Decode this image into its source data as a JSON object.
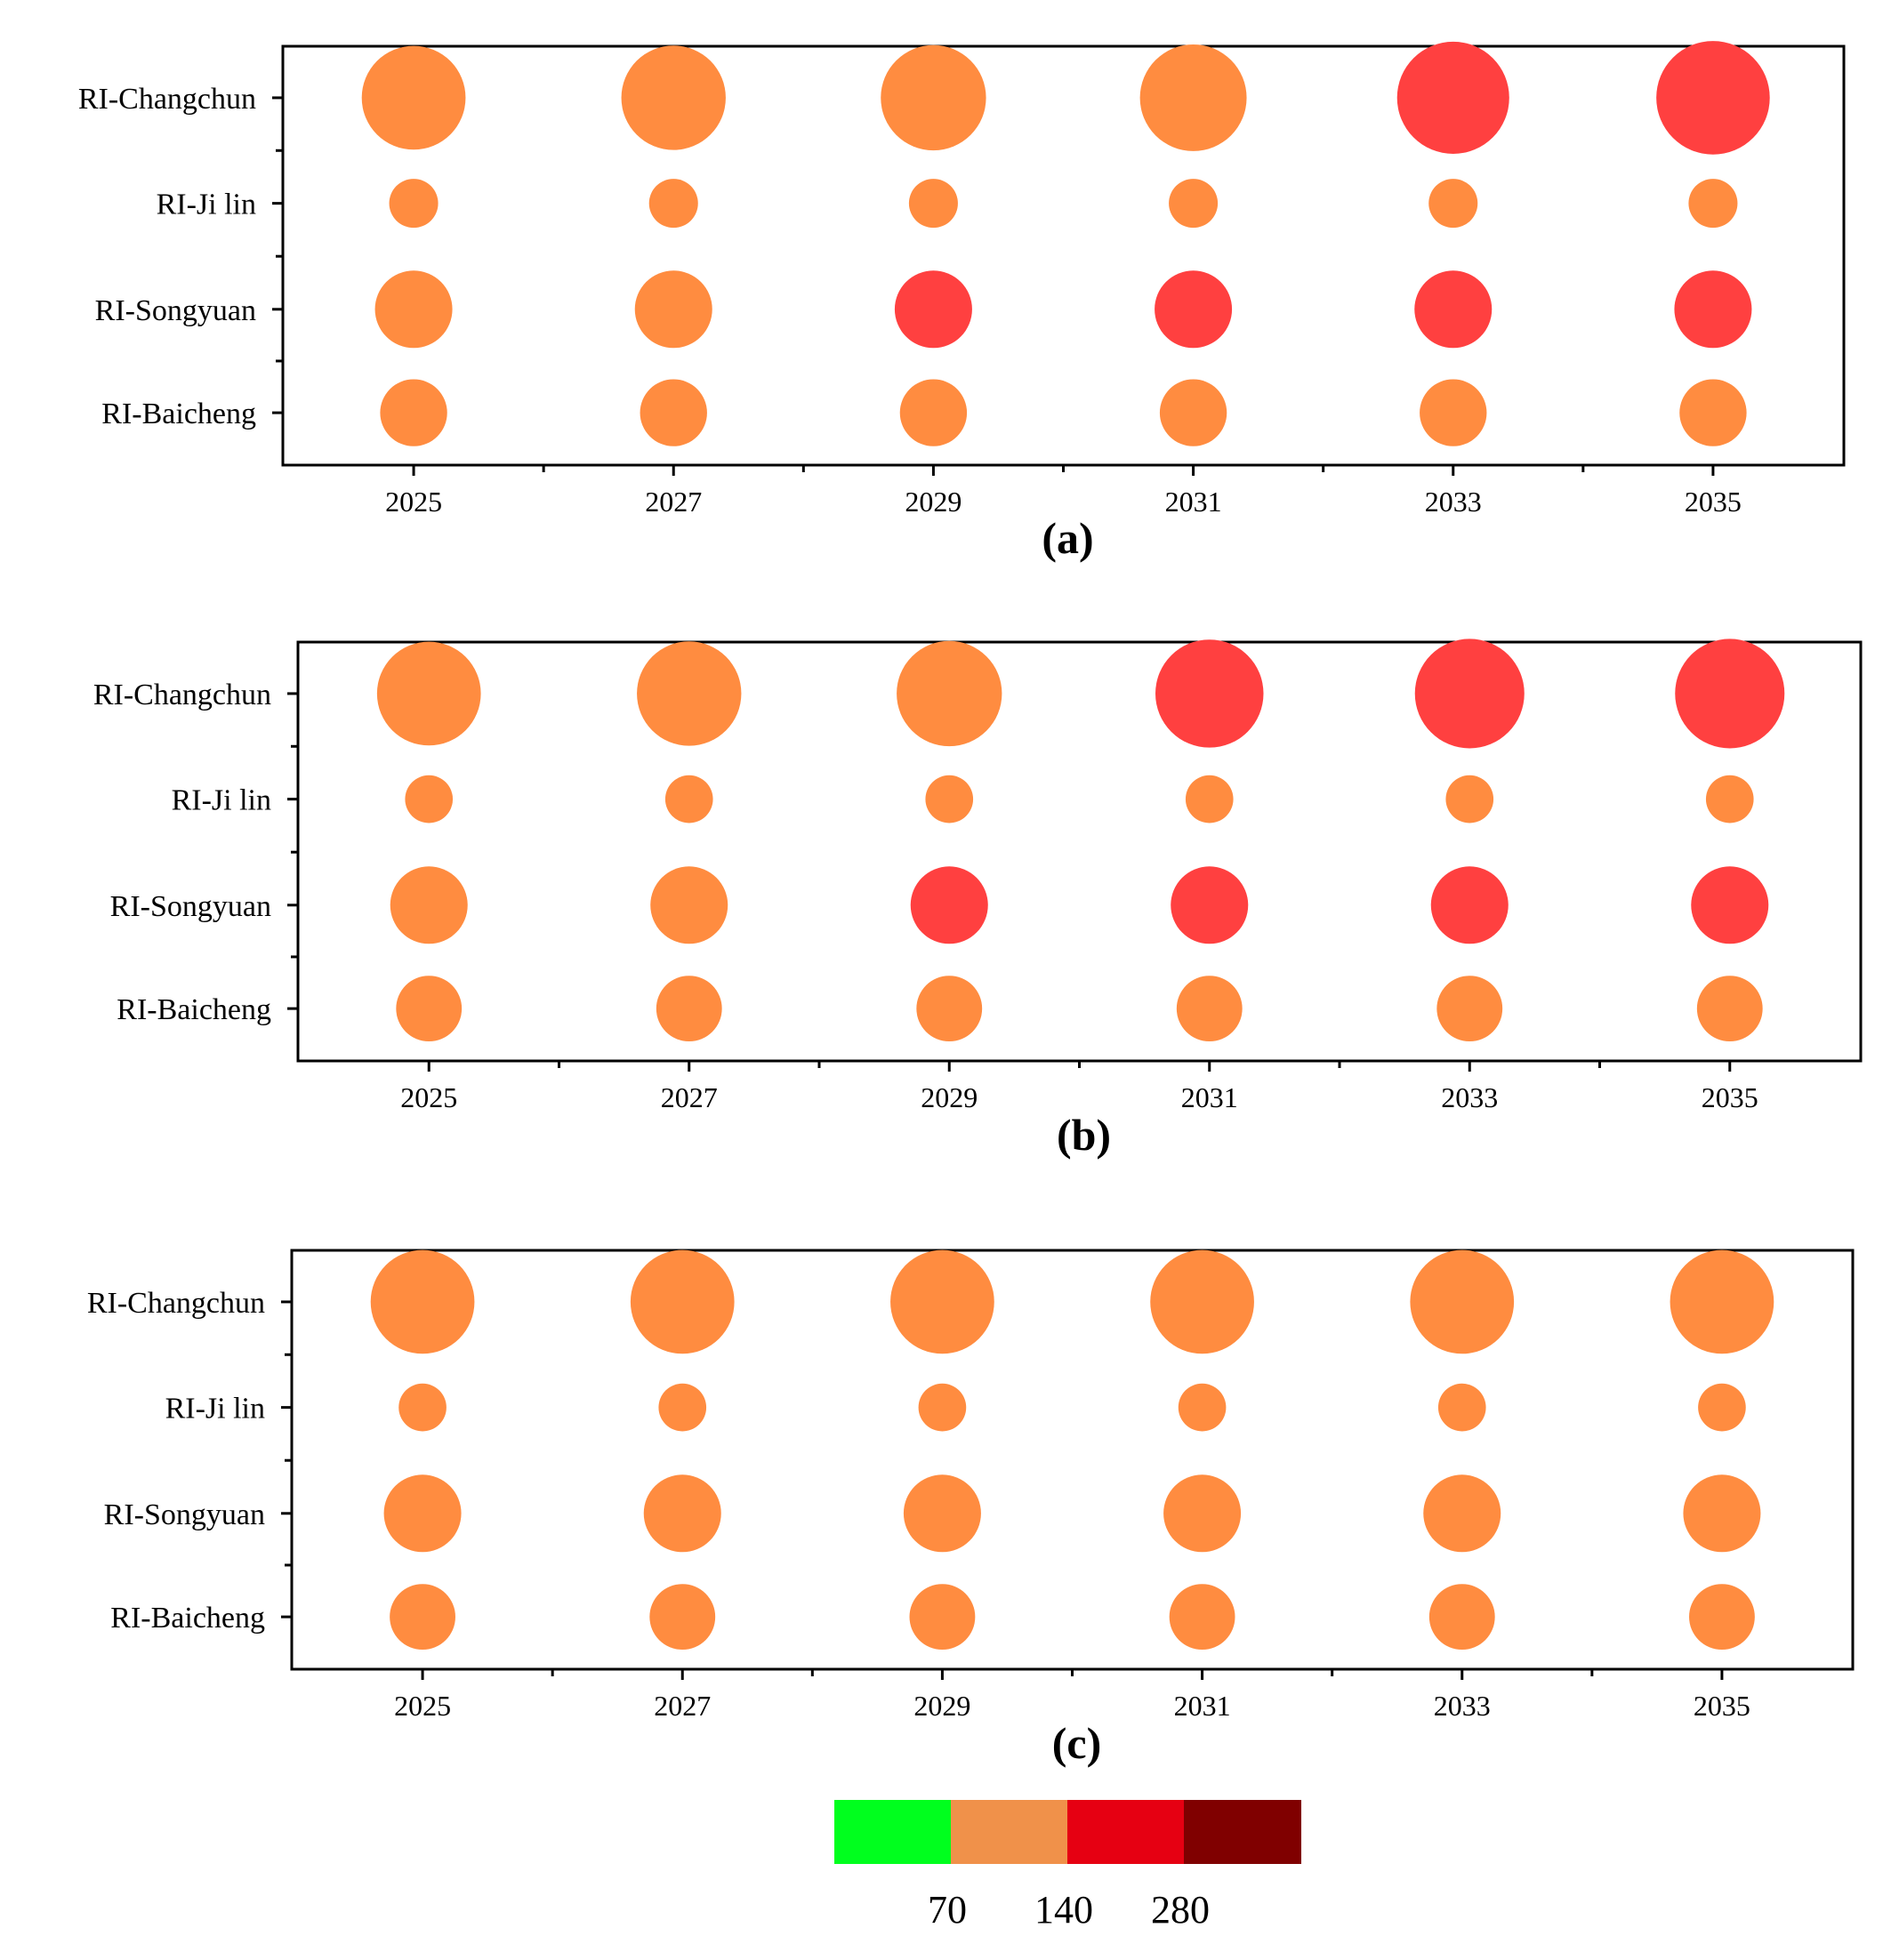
{
  "chart_data": [
    {
      "type": "scatter",
      "panel": "(a)",
      "x": [
        "2025",
        "2027",
        "2029",
        "2031",
        "2033",
        "2035"
      ],
      "y_categories": [
        "RI-Changchun",
        "RI-Ji lin",
        "RI-Songyuan",
        "RI-Baicheng"
      ],
      "series": [
        {
          "name": "RI-Changchun",
          "values": [
            180,
            182,
            185,
            190,
            210,
            215
          ],
          "color_class": [
            1,
            1,
            1,
            1,
            2,
            2
          ]
        },
        {
          "name": "RI-Ji lin",
          "values": [
            40,
            40,
            40,
            40,
            40,
            40
          ],
          "color_class": [
            1,
            1,
            1,
            1,
            1,
            1
          ]
        },
        {
          "name": "RI-Songyuan",
          "values": [
            100,
            100,
            100,
            100,
            100,
            100
          ],
          "color_class": [
            1,
            1,
            2,
            2,
            2,
            2
          ]
        },
        {
          "name": "RI-Baicheng",
          "values": [
            75,
            75,
            75,
            75,
            75,
            75
          ],
          "color_class": [
            1,
            1,
            1,
            1,
            1,
            1
          ]
        }
      ]
    },
    {
      "type": "scatter",
      "panel": "(b)",
      "x": [
        "2025",
        "2027",
        "2029",
        "2031",
        "2033",
        "2035"
      ],
      "y_categories": [
        "RI-Changchun",
        "RI-Ji lin",
        "RI-Songyuan",
        "RI-Baicheng"
      ],
      "series": [
        {
          "name": "RI-Changchun",
          "values": [
            180,
            182,
            185,
            195,
            200,
            200
          ],
          "color_class": [
            1,
            1,
            1,
            2,
            2,
            2
          ]
        },
        {
          "name": "RI-Ji lin",
          "values": [
            38,
            38,
            38,
            38,
            38,
            38
          ],
          "color_class": [
            1,
            1,
            1,
            1,
            1,
            1
          ]
        },
        {
          "name": "RI-Songyuan",
          "values": [
            100,
            100,
            100,
            100,
            100,
            100
          ],
          "color_class": [
            1,
            1,
            2,
            2,
            2,
            2
          ]
        },
        {
          "name": "RI-Baicheng",
          "values": [
            72,
            72,
            72,
            72,
            72,
            72
          ],
          "color_class": [
            1,
            1,
            1,
            1,
            1,
            1
          ]
        }
      ]
    },
    {
      "type": "scatter",
      "panel": "(c)",
      "x": [
        "2025",
        "2027",
        "2029",
        "2031",
        "2033",
        "2035"
      ],
      "y_categories": [
        "RI-Changchun",
        "RI-Ji lin",
        "RI-Songyuan",
        "RI-Baicheng"
      ],
      "series": [
        {
          "name": "RI-Changchun",
          "values": [
            180,
            180,
            180,
            180,
            180,
            180
          ],
          "color_class": [
            1,
            1,
            1,
            1,
            1,
            1
          ]
        },
        {
          "name": "RI-Ji lin",
          "values": [
            38,
            38,
            38,
            38,
            38,
            38
          ],
          "color_class": [
            1,
            1,
            1,
            1,
            1,
            1
          ]
        },
        {
          "name": "RI-Songyuan",
          "values": [
            100,
            100,
            100,
            100,
            100,
            100
          ],
          "color_class": [
            1,
            1,
            1,
            1,
            1,
            1
          ]
        },
        {
          "name": "RI-Baicheng",
          "values": [
            72,
            72,
            72,
            72,
            72,
            72
          ],
          "color_class": [
            1,
            1,
            1,
            1,
            1,
            1
          ]
        }
      ]
    }
  ],
  "legend": {
    "colors": [
      "#00ff1e",
      "#f0914a",
      "#e60012",
      "#800000"
    ],
    "thresholds": [
      "70",
      "140",
      "280"
    ]
  },
  "point_colors": [
    "#00ff1e",
    "#ff8c40",
    "#ff4040",
    "#800000"
  ]
}
